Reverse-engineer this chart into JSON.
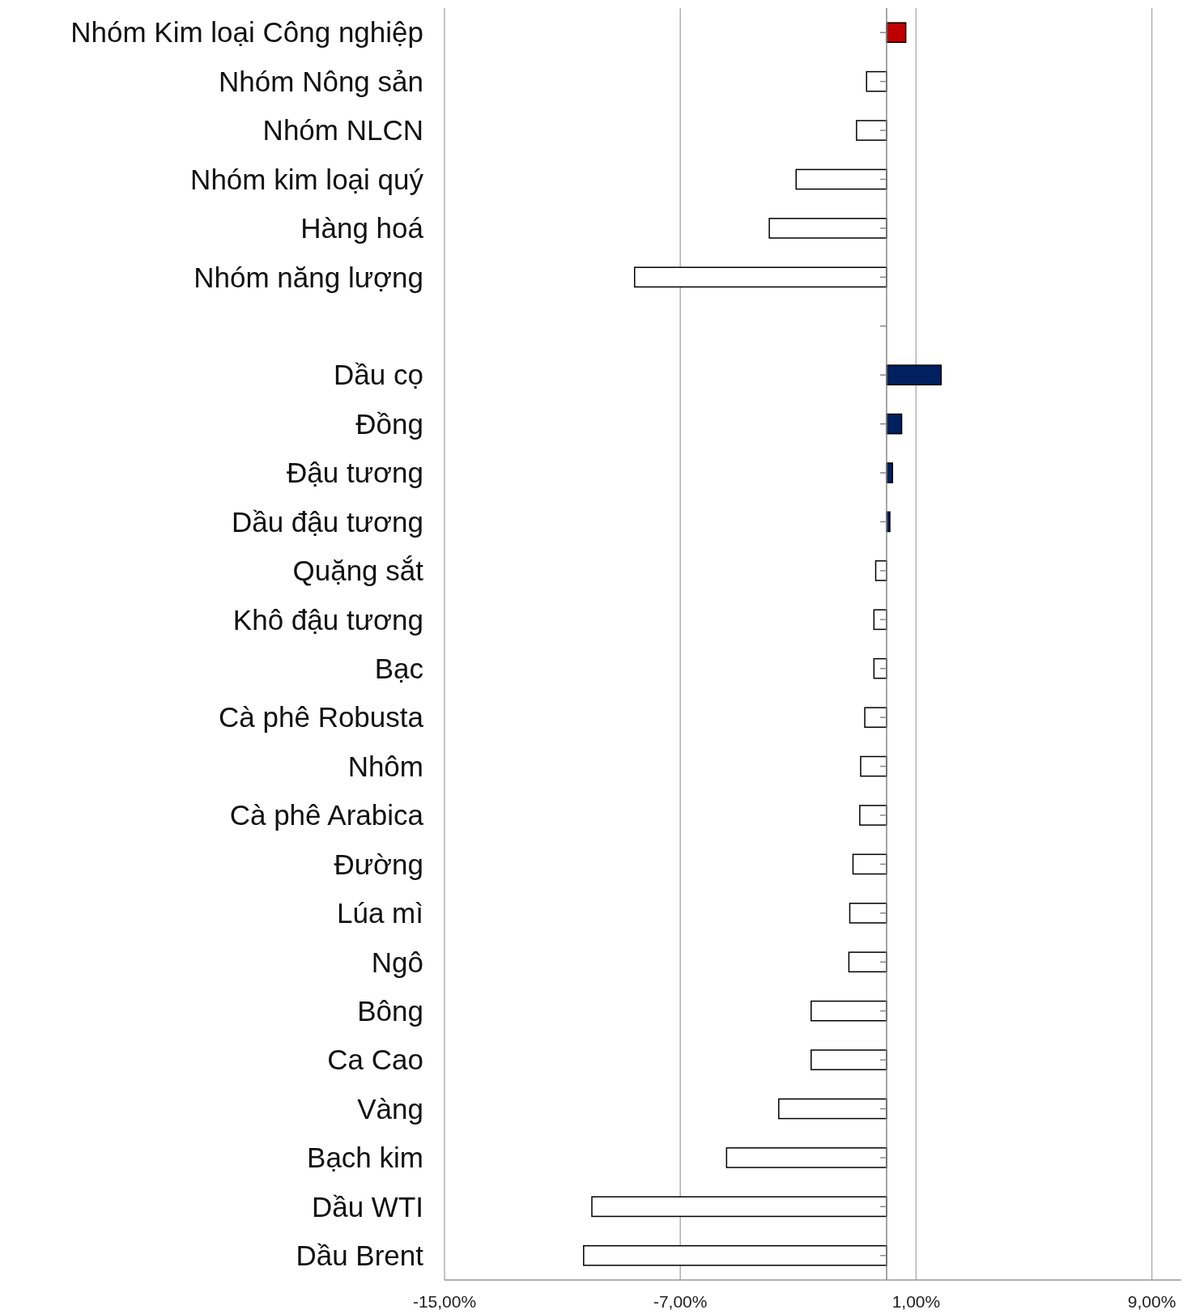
{
  "chart_data": {
    "type": "bar",
    "orientation": "horizontal",
    "categories": [
      "Nhóm Kim loại Công nghiệp",
      "Nhóm Nông sản",
      "Nhóm NLCN",
      "Nhóm kim loại quý",
      "Hàng hoá",
      "Nhóm năng lượng",
      null,
      "Dầu cọ",
      "Đồng",
      "Đậu tương",
      "Dầu đậu tương",
      "Quặng sắt",
      "Khô đậu tương",
      "Bạc",
      "Cà phê Robusta",
      "Nhôm",
      "Cà phê Arabica",
      "Đường",
      "Lúa mì",
      "Ngô",
      "Bông",
      "Ca Cao",
      "Vàng",
      "Bạch kim",
      "Dầu WTI",
      "Dầu Brent"
    ],
    "values": [
      0.65,
      -0.68,
      -1.02,
      -3.07,
      -3.98,
      -8.55,
      null,
      1.85,
      0.51,
      0.2,
      0.11,
      -0.37,
      -0.43,
      -0.43,
      -0.74,
      -0.88,
      -0.91,
      -1.14,
      -1.25,
      -1.28,
      -2.56,
      -2.56,
      -3.66,
      -5.43,
      -10.0,
      -10.28
    ],
    "colors": [
      "#c00000",
      "#ffffff",
      "#ffffff",
      "#ffffff",
      "#ffffff",
      "#ffffff",
      null,
      "#002060",
      "#002060",
      "#002060",
      "#002060",
      "#ffffff",
      "#ffffff",
      "#ffffff",
      "#ffffff",
      "#ffffff",
      "#ffffff",
      "#ffffff",
      "#ffffff",
      "#ffffff",
      "#ffffff",
      "#ffffff",
      "#ffffff",
      "#ffffff",
      "#ffffff",
      "#ffffff"
    ],
    "xlim": [
      -15,
      10
    ],
    "xticks": [
      {
        "value": -15,
        "label": "-15,00%"
      },
      {
        "value": -7,
        "label": "-7,00%"
      },
      {
        "value": 1,
        "label": "1,00%"
      },
      {
        "value": 9,
        "label": "9,00%"
      }
    ],
    "grid": "x"
  }
}
